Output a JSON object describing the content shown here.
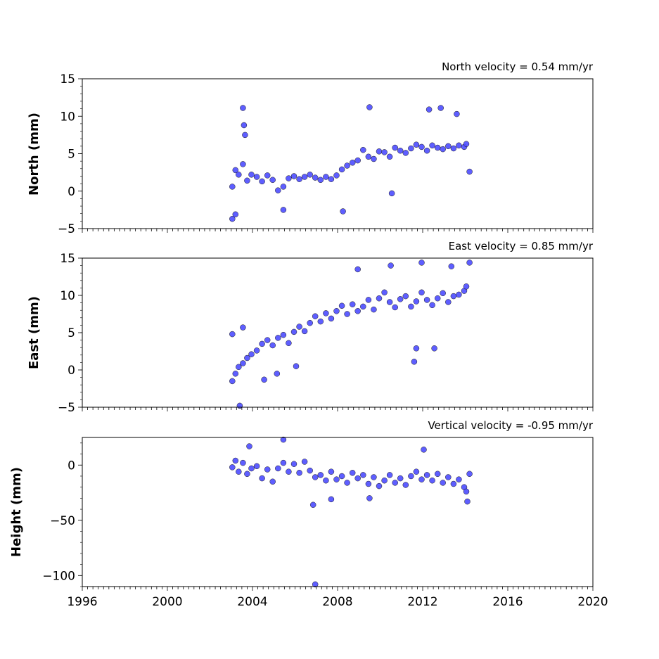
{
  "chart_data": [
    {
      "type": "scatter",
      "panel": "north",
      "title": "North velocity = 0.54 mm/yr",
      "ylabel": "North (mm)",
      "xlabel": "",
      "xlim": [
        1996,
        2020
      ],
      "ylim": [
        -5,
        15
      ],
      "y_ticks": [
        -5,
        0,
        5,
        10,
        15
      ],
      "y_tick_labels": [
        "−5",
        "0",
        "5",
        "10",
        "15"
      ],
      "show_x_tick_labels": false,
      "grid": false,
      "series": [
        {
          "color": "#4c4cff",
          "points": [
            [
              2003.05,
              0.6
            ],
            [
              2003.2,
              2.8
            ],
            [
              2003.35,
              2.2
            ],
            [
              2003.55,
              3.6
            ],
            [
              2003.75,
              1.4
            ],
            [
              2003.95,
              2.2
            ],
            [
              2004.2,
              1.9
            ],
            [
              2004.45,
              1.3
            ],
            [
              2004.7,
              2.1
            ],
            [
              2004.95,
              1.5
            ],
            [
              2005.2,
              0.1
            ],
            [
              2005.45,
              0.6
            ],
            [
              2005.7,
              1.7
            ],
            [
              2005.95,
              2.0
            ],
            [
              2006.2,
              1.6
            ],
            [
              2006.45,
              1.9
            ],
            [
              2006.7,
              2.2
            ],
            [
              2006.95,
              1.8
            ],
            [
              2007.2,
              1.5
            ],
            [
              2007.45,
              1.9
            ],
            [
              2007.7,
              1.6
            ],
            [
              2007.95,
              2.1
            ],
            [
              2008.2,
              2.9
            ],
            [
              2008.45,
              3.4
            ],
            [
              2008.7,
              3.8
            ],
            [
              2008.95,
              4.1
            ],
            [
              2009.2,
              5.5
            ],
            [
              2009.45,
              4.6
            ],
            [
              2009.7,
              4.3
            ],
            [
              2009.95,
              5.3
            ],
            [
              2010.2,
              5.2
            ],
            [
              2010.45,
              4.6
            ],
            [
              2010.7,
              5.8
            ],
            [
              2010.95,
              5.4
            ],
            [
              2011.2,
              5.1
            ],
            [
              2011.45,
              5.7
            ],
            [
              2011.7,
              6.2
            ],
            [
              2011.95,
              5.9
            ],
            [
              2012.2,
              5.4
            ],
            [
              2012.45,
              6.1
            ],
            [
              2012.7,
              5.8
            ],
            [
              2012.95,
              5.6
            ],
            [
              2013.2,
              6.0
            ],
            [
              2013.45,
              5.7
            ],
            [
              2013.7,
              6.1
            ],
            [
              2013.95,
              5.9
            ],
            [
              2014.05,
              6.3
            ],
            [
              2003.05,
              -3.7
            ],
            [
              2003.2,
              -3.1
            ],
            [
              2003.55,
              11.1
            ],
            [
              2003.6,
              8.8
            ],
            [
              2003.65,
              7.5
            ],
            [
              2005.45,
              -2.5
            ],
            [
              2008.25,
              -2.7
            ],
            [
              2009.5,
              11.2
            ],
            [
              2010.55,
              -0.3
            ],
            [
              2012.3,
              10.9
            ],
            [
              2012.85,
              11.1
            ],
            [
              2013.6,
              10.3
            ],
            [
              2014.2,
              2.6
            ]
          ]
        }
      ]
    },
    {
      "type": "scatter",
      "panel": "east",
      "title": "East velocity = 0.85 mm/yr",
      "ylabel": "East (mm)",
      "xlabel": "",
      "xlim": [
        1996,
        2020
      ],
      "ylim": [
        -5,
        15
      ],
      "y_ticks": [
        -5,
        0,
        5,
        10,
        15
      ],
      "y_tick_labels": [
        "−5",
        "0",
        "5",
        "10",
        "15"
      ],
      "show_x_tick_labels": false,
      "grid": false,
      "series": [
        {
          "color": "#4c4cff",
          "points": [
            [
              2003.05,
              -1.5
            ],
            [
              2003.2,
              -0.5
            ],
            [
              2003.35,
              0.4
            ],
            [
              2003.55,
              0.9
            ],
            [
              2003.75,
              1.6
            ],
            [
              2003.95,
              2.1
            ],
            [
              2004.2,
              2.6
            ],
            [
              2004.45,
              3.5
            ],
            [
              2004.7,
              4.0
            ],
            [
              2004.95,
              3.3
            ],
            [
              2005.2,
              4.3
            ],
            [
              2005.45,
              4.7
            ],
            [
              2005.7,
              3.6
            ],
            [
              2005.95,
              5.1
            ],
            [
              2006.2,
              5.8
            ],
            [
              2006.45,
              5.2
            ],
            [
              2006.7,
              6.3
            ],
            [
              2006.95,
              7.2
            ],
            [
              2007.2,
              6.5
            ],
            [
              2007.45,
              7.6
            ],
            [
              2007.7,
              6.9
            ],
            [
              2007.95,
              7.9
            ],
            [
              2008.2,
              8.6
            ],
            [
              2008.45,
              7.5
            ],
            [
              2008.7,
              8.8
            ],
            [
              2008.95,
              7.9
            ],
            [
              2009.2,
              8.5
            ],
            [
              2009.45,
              9.4
            ],
            [
              2009.7,
              8.1
            ],
            [
              2009.95,
              9.6
            ],
            [
              2010.2,
              10.4
            ],
            [
              2010.45,
              9.1
            ],
            [
              2010.7,
              8.4
            ],
            [
              2010.95,
              9.5
            ],
            [
              2011.2,
              9.9
            ],
            [
              2011.45,
              8.5
            ],
            [
              2011.7,
              9.2
            ],
            [
              2011.95,
              10.4
            ],
            [
              2012.2,
              9.4
            ],
            [
              2012.45,
              8.7
            ],
            [
              2012.7,
              9.6
            ],
            [
              2012.95,
              10.3
            ],
            [
              2013.2,
              9.1
            ],
            [
              2013.45,
              9.9
            ],
            [
              2013.7,
              10.1
            ],
            [
              2013.95,
              10.6
            ],
            [
              2014.05,
              11.2
            ],
            [
              2003.05,
              4.8
            ],
            [
              2003.4,
              -4.8
            ],
            [
              2003.55,
              5.7
            ],
            [
              2004.55,
              -1.3
            ],
            [
              2005.15,
              -0.5
            ],
            [
              2006.05,
              0.5
            ],
            [
              2008.95,
              13.5
            ],
            [
              2010.5,
              14.0
            ],
            [
              2011.6,
              1.1
            ],
            [
              2011.7,
              2.9
            ],
            [
              2011.95,
              14.4
            ],
            [
              2012.55,
              2.9
            ],
            [
              2013.35,
              13.9
            ],
            [
              2014.2,
              14.4
            ]
          ]
        }
      ]
    },
    {
      "type": "scatter",
      "panel": "height",
      "title": "Vertical velocity = -0.95 mm/yr",
      "ylabel": "Height (mm)",
      "xlabel": "",
      "xlim": [
        1996,
        2020
      ],
      "ylim": [
        -110,
        25
      ],
      "y_ticks": [
        -100,
        -50,
        0
      ],
      "y_tick_labels": [
        "−100",
        "−50",
        "0"
      ],
      "x_ticks": [
        1996,
        2000,
        2004,
        2008,
        2012,
        2016,
        2020
      ],
      "x_tick_labels": [
        "1996",
        "2000",
        "2004",
        "2008",
        "2012",
        "2016",
        "2020"
      ],
      "show_x_tick_labels": true,
      "grid": false,
      "series": [
        {
          "color": "#4c4cff",
          "points": [
            [
              2003.05,
              -2
            ],
            [
              2003.2,
              4
            ],
            [
              2003.35,
              -6
            ],
            [
              2003.55,
              2
            ],
            [
              2003.75,
              -8
            ],
            [
              2003.95,
              -3
            ],
            [
              2004.2,
              -1
            ],
            [
              2004.45,
              -12
            ],
            [
              2004.7,
              -4
            ],
            [
              2004.95,
              -15
            ],
            [
              2005.2,
              -3
            ],
            [
              2005.45,
              2
            ],
            [
              2005.7,
              -6
            ],
            [
              2005.95,
              1
            ],
            [
              2006.2,
              -7
            ],
            [
              2006.45,
              3
            ],
            [
              2006.7,
              -5
            ],
            [
              2006.95,
              -11
            ],
            [
              2007.2,
              -9
            ],
            [
              2007.45,
              -14
            ],
            [
              2007.7,
              -6
            ],
            [
              2007.95,
              -13
            ],
            [
              2008.2,
              -10
            ],
            [
              2008.45,
              -16
            ],
            [
              2008.7,
              -7
            ],
            [
              2008.95,
              -12
            ],
            [
              2009.2,
              -9
            ],
            [
              2009.45,
              -17
            ],
            [
              2009.7,
              -11
            ],
            [
              2009.95,
              -19
            ],
            [
              2010.2,
              -14
            ],
            [
              2010.45,
              -9
            ],
            [
              2010.7,
              -16
            ],
            [
              2010.95,
              -12
            ],
            [
              2011.2,
              -18
            ],
            [
              2011.45,
              -10
            ],
            [
              2011.7,
              -6
            ],
            [
              2011.95,
              -13
            ],
            [
              2012.2,
              -9
            ],
            [
              2012.45,
              -14
            ],
            [
              2012.7,
              -8
            ],
            [
              2012.95,
              -16
            ],
            [
              2013.2,
              -11
            ],
            [
              2013.45,
              -17
            ],
            [
              2013.7,
              -13
            ],
            [
              2013.95,
              -20
            ],
            [
              2014.05,
              -24
            ],
            [
              2003.85,
              17
            ],
            [
              2005.45,
              23
            ],
            [
              2006.85,
              -36
            ],
            [
              2006.95,
              -108
            ],
            [
              2007.7,
              -31
            ],
            [
              2009.5,
              -30
            ],
            [
              2012.05,
              14
            ],
            [
              2014.1,
              -33
            ],
            [
              2014.2,
              -8
            ]
          ]
        }
      ]
    }
  ]
}
